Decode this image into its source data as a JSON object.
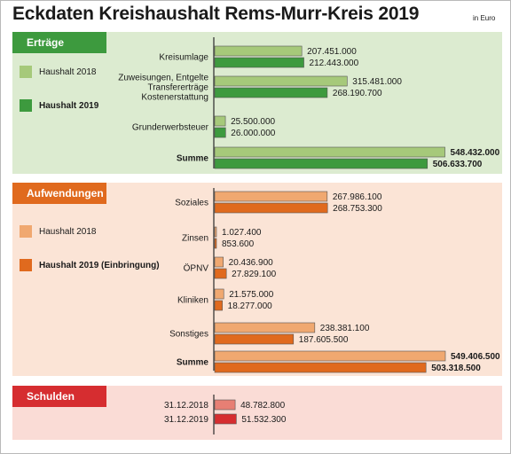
{
  "title": "Eckdaten Kreishaushalt Rems-Murr-Kreis 2019",
  "unit": "in Euro",
  "chart_data": [
    {
      "type": "bar",
      "section": "Erträge",
      "legend": [
        "Haushalt 2018",
        "Haushalt 2019"
      ],
      "colors": [
        "#a6c97a",
        "#3d9a3e"
      ],
      "background": "#dcebd0",
      "header_color": "#3d9a3e",
      "max": 548432000,
      "categories": [
        {
          "label": [
            "Kreisumlage"
          ],
          "values": [
            207451000,
            212443000
          ],
          "labels": [
            "207.451.000",
            "212.443.000"
          ]
        },
        {
          "label": [
            "Zuweisungen, Entgelte",
            "Transfererträge",
            "Kostenerstattung"
          ],
          "values": [
            315481000,
            268190700
          ],
          "labels": [
            "315.481.000",
            "268.190.700"
          ]
        },
        {
          "label": [
            "Grunderwerbsteuer"
          ],
          "values": [
            25500000,
            26000000
          ],
          "labels": [
            "25.500.000",
            "26.000.000"
          ]
        },
        {
          "label": [
            "Summe"
          ],
          "bold": true,
          "values": [
            548432000,
            506633700
          ],
          "labels": [
            "548.432.000",
            "506.633.700"
          ]
        }
      ]
    },
    {
      "type": "bar",
      "section": "Aufwendungen",
      "legend": [
        "Haushalt 2018",
        "Haushalt 2019 (Einbringung)"
      ],
      "colors": [
        "#f0a870",
        "#e06a1e"
      ],
      "background": "#fbe4d6",
      "header_color": "#e06a1e",
      "max": 549406500,
      "categories": [
        {
          "label": [
            "Soziales"
          ],
          "values": [
            267986100,
            268753300
          ],
          "labels": [
            "267.986.100",
            "268.753.300"
          ]
        },
        {
          "label": [
            "Zinsen"
          ],
          "values": [
            1027400,
            853600
          ],
          "labels": [
            "1.027.400",
            "853.600"
          ]
        },
        {
          "label": [
            "ÖPNV"
          ],
          "values": [
            20436900,
            27829100
          ],
          "labels": [
            "20.436.900",
            "27.829.100"
          ]
        },
        {
          "label": [
            "Kliniken"
          ],
          "values": [
            21575000,
            18277000
          ],
          "labels": [
            "21.575.000",
            "18.277.000"
          ]
        },
        {
          "label": [
            "Sonstiges"
          ],
          "values": [
            238381100,
            187605500
          ],
          "labels": [
            "238.381.100",
            "187.605.500"
          ]
        },
        {
          "label": [
            "Summe"
          ],
          "bold": true,
          "values": [
            549406500,
            503318500
          ],
          "labels": [
            "549.406.500",
            "503.318.500"
          ]
        }
      ]
    },
    {
      "type": "bar",
      "section": "Schulden",
      "legend": [],
      "colors": [
        "#e77f74",
        "#d62d30"
      ],
      "background": "#fadcd6",
      "header_color": "#d62d30",
      "max": 548432000,
      "categories": [
        {
          "label": [
            "31.12.2018"
          ],
          "values": [
            48782800
          ],
          "labels": [
            "48.782.800"
          ],
          "single_color": 0
        },
        {
          "label": [
            "31.12.2019"
          ],
          "values": [
            51532300
          ],
          "labels": [
            "51.532.300"
          ],
          "single_color": 1
        }
      ]
    }
  ]
}
